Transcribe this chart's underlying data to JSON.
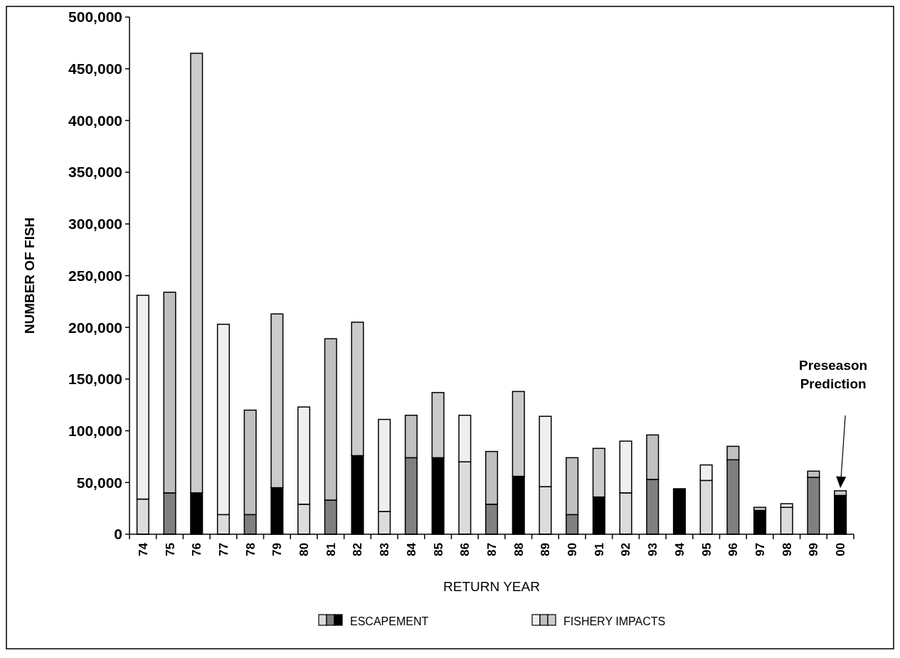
{
  "chart_data": {
    "type": "bar",
    "stacked": true,
    "xlabel": "RETURN YEAR",
    "ylabel": "NUMBER OF FISH",
    "categories": [
      "74",
      "75",
      "76",
      "77",
      "78",
      "79",
      "80",
      "81",
      "82",
      "83",
      "84",
      "85",
      "86",
      "87",
      "88",
      "89",
      "90",
      "91",
      "92",
      "93",
      "94",
      "95",
      "96",
      "97",
      "98",
      "99",
      "00"
    ],
    "series": [
      {
        "name": "ESCAPEMENT",
        "colors": [
          "#dcdcdc",
          "#808080",
          "#000000",
          "#dcdcdc",
          "#808080",
          "#000000",
          "#dcdcdc",
          "#808080",
          "#000000",
          "#dcdcdc",
          "#808080",
          "#000000",
          "#dcdcdc",
          "#808080",
          "#000000",
          "#dcdcdc",
          "#808080",
          "#000000",
          "#dcdcdc",
          "#808080",
          "#000000",
          "#dcdcdc",
          "#808080",
          "#000000",
          "#dcdcdc",
          "#808080",
          "#000000"
        ],
        "values": [
          34000,
          40000,
          40000,
          19000,
          19000,
          45000,
          29000,
          33000,
          76000,
          22000,
          74000,
          74000,
          70000,
          29000,
          56000,
          46000,
          19000,
          36000,
          40000,
          53000,
          44000,
          52000,
          72000,
          23000,
          26000,
          55000,
          37500
        ]
      },
      {
        "name": "FISHERY IMPACTS",
        "colors": [
          "#efefef",
          "#c0c0c0",
          "#cbcbcb",
          "#efefef",
          "#c0c0c0",
          "#cbcbcb",
          "#efefef",
          "#c0c0c0",
          "#cbcbcb",
          "#efefef",
          "#c0c0c0",
          "#cbcbcb",
          "#efefef",
          "#c0c0c0",
          "#cbcbcb",
          "#efefef",
          "#c0c0c0",
          "#cbcbcb",
          "#efefef",
          "#c0c0c0",
          null,
          "#efefef",
          "#c0c0c0",
          "#cbcbcb",
          "#efefef",
          "#c0c0c0",
          "#cbcbcb"
        ],
        "values": [
          197000,
          194000,
          425000,
          184000,
          101000,
          168000,
          94000,
          156000,
          129000,
          89000,
          41000,
          63000,
          45000,
          51000,
          82000,
          68000,
          55000,
          47000,
          50000,
          43000,
          null,
          15000,
          13000,
          3000,
          3500,
          6000,
          4500
        ]
      }
    ],
    "ylim": [
      0,
      500000
    ],
    "yticks": [
      {
        "value": 0,
        "label": "0"
      },
      {
        "value": 50000,
        "label": "50,000"
      },
      {
        "value": 100000,
        "label": "100,000"
      },
      {
        "value": 150000,
        "label": "150,000"
      },
      {
        "value": 200000,
        "label": "200,000"
      },
      {
        "value": 250000,
        "label": "250,000"
      },
      {
        "value": 300000,
        "label": "300,000"
      },
      {
        "value": 350000,
        "label": "350,000"
      },
      {
        "value": 400000,
        "label": "400,000"
      },
      {
        "value": 450000,
        "label": "450,000"
      },
      {
        "value": 500000,
        "label": "500,000"
      }
    ],
    "annotations": [
      "Preseason\nPrediction"
    ],
    "legend": "bottom",
    "grid": false
  }
}
